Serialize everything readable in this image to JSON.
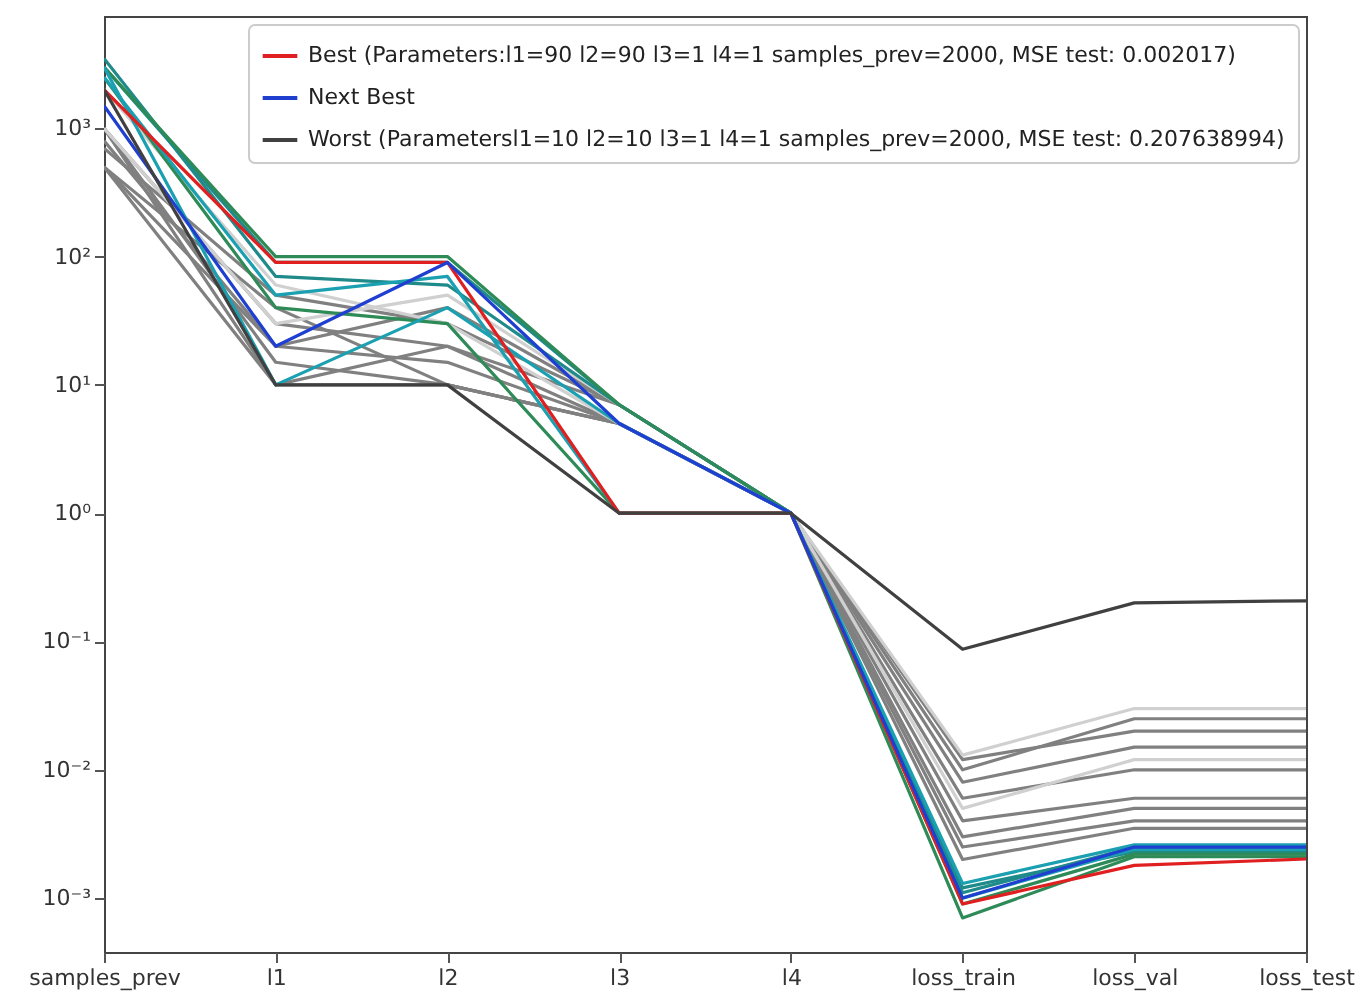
{
  "chart_data": {
    "type": "line",
    "log": true,
    "legend": "top right",
    "categories": [
      "samples_prev",
      "l1",
      "l2",
      "l3",
      "l4",
      "loss_train",
      "loss_val",
      "loss_test"
    ],
    "ylim": [
      0.00038,
      7500
    ],
    "yticks": [
      {
        "value": 0.001,
        "label": "10⁻³"
      },
      {
        "value": 0.01,
        "label": "10⁻²"
      },
      {
        "value": 0.1,
        "label": "10⁻¹"
      },
      {
        "value": 1,
        "label": "10⁰"
      },
      {
        "value": 10,
        "label": "10¹"
      },
      {
        "value": 100,
        "label": "10²"
      },
      {
        "value": 1000,
        "label": "10³"
      }
    ],
    "series": [
      {
        "color": "#808080",
        "values": [
          500,
          10,
          10,
          5,
          1,
          0.012,
          0.02,
          0.02
        ]
      },
      {
        "color": "#808080",
        "values": [
          500,
          20,
          15,
          5,
          1,
          0.006,
          0.01,
          0.01
        ]
      },
      {
        "color": "#808080",
        "values": [
          1000,
          30,
          20,
          5,
          1,
          0.004,
          0.006,
          0.006
        ]
      },
      {
        "color": "#808080",
        "values": [
          1000,
          10,
          20,
          7,
          1,
          0.003,
          0.005,
          0.005
        ]
      },
      {
        "color": "#808080",
        "values": [
          500,
          40,
          10,
          5,
          1,
          0.008,
          0.015,
          0.015
        ]
      },
      {
        "color": "#808080",
        "values": [
          700,
          50,
          30,
          7,
          1,
          0.002,
          0.0035,
          0.0035
        ]
      },
      {
        "color": "#808080",
        "values": [
          1000,
          15,
          10,
          5,
          1,
          0.01,
          0.025,
          0.025
        ]
      },
      {
        "color": "#808080",
        "values": [
          800,
          20,
          40,
          7,
          1,
          0.0025,
          0.004,
          0.004
        ]
      },
      {
        "color": "#d0d0d0",
        "values": [
          1000,
          30,
          50,
          7,
          1,
          0.013,
          0.03,
          0.03
        ]
      },
      {
        "color": "#d0d0d0",
        "values": [
          2000,
          60,
          30,
          5,
          1,
          0.005,
          0.012,
          0.012
        ]
      },
      {
        "color": "#1f8a8a",
        "values": [
          3000,
          90,
          90,
          7,
          1,
          0.0011,
          0.0025,
          0.0025
        ]
      },
      {
        "color": "#1f8a8a",
        "values": [
          3500,
          70,
          60,
          7,
          1,
          0.0012,
          0.0023,
          0.0023
        ]
      },
      {
        "color": "#2e8b57",
        "values": [
          3000,
          100,
          100,
          7,
          1,
          0.0009,
          0.0022,
          0.0022
        ]
      },
      {
        "color": "#2e8b57",
        "values": [
          2500,
          40,
          30,
          1,
          1,
          0.0007,
          0.0021,
          0.0021
        ]
      },
      {
        "color": "#1aa0b0",
        "values": [
          2500,
          50,
          70,
          1,
          1,
          0.001,
          0.0024,
          0.0024
        ]
      },
      {
        "color": "#1aa0b0",
        "values": [
          3000,
          10,
          40,
          5,
          1,
          0.0013,
          0.0026,
          0.0026
        ]
      },
      {
        "name": "Best (Parameters:l1=90 l2=90 l3=1 l4=1 samples_prev=2000, MSE test: 0.002017)",
        "color": "#e02020",
        "values": [
          2000,
          90,
          90,
          1,
          1,
          0.0009,
          0.0018,
          0.002017
        ]
      },
      {
        "name": "Next Best",
        "color": "#1f3fd0",
        "values": [
          1500,
          20,
          90,
          5,
          1,
          0.001,
          0.0025,
          0.0025
        ]
      },
      {
        "name": "Worst (Parametersl1=10 l2=10 l3=1 l4=1 samples_prev=2000, MSE test: 0.207638994)",
        "color": "#404040",
        "values": [
          2000,
          10,
          10,
          1,
          1,
          0.087,
          0.2,
          0.2076
        ]
      }
    ]
  }
}
